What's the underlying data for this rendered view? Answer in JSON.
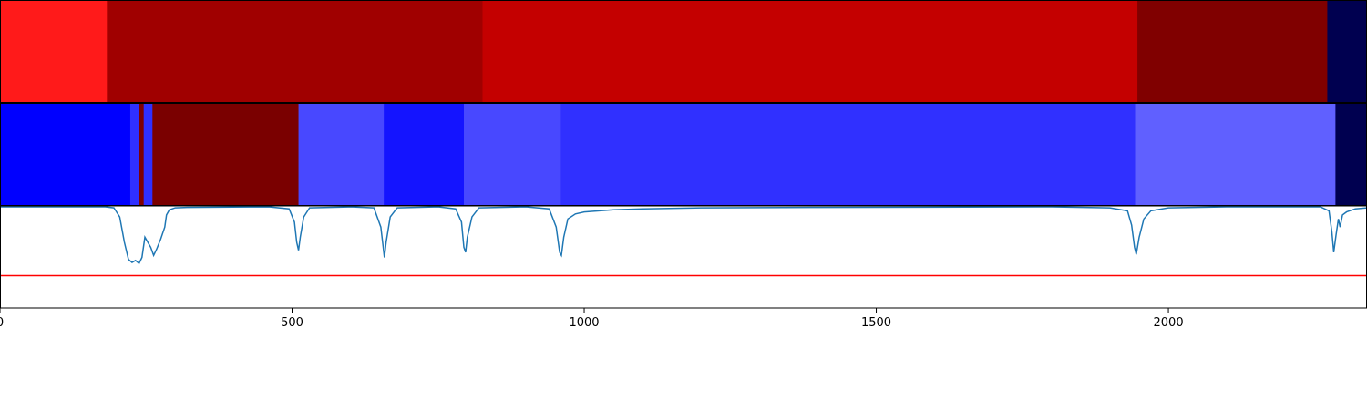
{
  "chart_data": {
    "type": "heatmap",
    "xlim": [
      0,
      2340
    ],
    "xticks": [
      0,
      500,
      1000,
      1500,
      2000
    ],
    "xtick_labels": [
      "0",
      "500",
      "1000",
      "1500",
      "2000"
    ],
    "title": "",
    "xlabel": "",
    "ylabel": "",
    "grid": false,
    "legend": "none",
    "segments_row1": [
      {
        "start": 0,
        "end": 183,
        "color": "#ff1a1a"
      },
      {
        "start": 183,
        "end": 826,
        "color": "#a00000"
      },
      {
        "start": 826,
        "end": 1947,
        "color": "#c40000"
      },
      {
        "start": 1947,
        "end": 2272,
        "color": "#800000"
      },
      {
        "start": 2272,
        "end": 2340,
        "color": "#000050"
      }
    ],
    "segments_row2": [
      {
        "start": 0,
        "end": 223,
        "color": "#0000ff"
      },
      {
        "start": 223,
        "end": 238,
        "color": "#3030ff"
      },
      {
        "start": 238,
        "end": 246,
        "color": "#800000"
      },
      {
        "start": 246,
        "end": 261,
        "color": "#3030ff"
      },
      {
        "start": 261,
        "end": 511,
        "color": "#7a0000"
      },
      {
        "start": 511,
        "end": 657,
        "color": "#4848ff"
      },
      {
        "start": 657,
        "end": 794,
        "color": "#1414ff"
      },
      {
        "start": 794,
        "end": 960,
        "color": "#4848ff"
      },
      {
        "start": 960,
        "end": 1943,
        "color": "#3030ff"
      },
      {
        "start": 1943,
        "end": 2286,
        "color": "#6060ff"
      },
      {
        "start": 2286,
        "end": 2340,
        "color": "#000050"
      }
    ],
    "signal": {
      "color": "#1f77b4",
      "ylim": [
        0,
        1
      ],
      "points": [
        [
          0,
          1.0
        ],
        [
          180,
          1.0
        ],
        [
          195,
          0.99
        ],
        [
          205,
          0.9
        ],
        [
          213,
          0.65
        ],
        [
          220,
          0.48
        ],
        [
          226,
          0.45
        ],
        [
          232,
          0.47
        ],
        [
          238,
          0.44
        ],
        [
          243,
          0.5
        ],
        [
          248,
          0.7
        ],
        [
          253,
          0.65
        ],
        [
          258,
          0.6
        ],
        [
          263,
          0.52
        ],
        [
          268,
          0.58
        ],
        [
          275,
          0.68
        ],
        [
          282,
          0.8
        ],
        [
          285,
          0.92
        ],
        [
          290,
          0.97
        ],
        [
          300,
          0.99
        ],
        [
          320,
          0.995
        ],
        [
          460,
          1.0
        ],
        [
          495,
          0.98
        ],
        [
          504,
          0.85
        ],
        [
          508,
          0.65
        ],
        [
          511,
          0.57
        ],
        [
          514,
          0.7
        ],
        [
          520,
          0.9
        ],
        [
          530,
          0.99
        ],
        [
          600,
          1.0
        ],
        [
          640,
          0.99
        ],
        [
          652,
          0.8
        ],
        [
          656,
          0.6
        ],
        [
          658,
          0.5
        ],
        [
          661,
          0.65
        ],
        [
          668,
          0.9
        ],
        [
          680,
          0.99
        ],
        [
          750,
          1.0
        ],
        [
          780,
          0.98
        ],
        [
          790,
          0.85
        ],
        [
          794,
          0.6
        ],
        [
          797,
          0.55
        ],
        [
          800,
          0.7
        ],
        [
          808,
          0.9
        ],
        [
          820,
          0.99
        ],
        [
          900,
          1.0
        ],
        [
          940,
          0.98
        ],
        [
          952,
          0.8
        ],
        [
          958,
          0.55
        ],
        [
          961,
          0.52
        ],
        [
          965,
          0.7
        ],
        [
          972,
          0.88
        ],
        [
          985,
          0.93
        ],
        [
          1000,
          0.95
        ],
        [
          1050,
          0.97
        ],
        [
          1100,
          0.98
        ],
        [
          1200,
          0.99
        ],
        [
          1400,
          0.995
        ],
        [
          1800,
          1.0
        ],
        [
          1900,
          0.99
        ],
        [
          1930,
          0.96
        ],
        [
          1937,
          0.82
        ],
        [
          1942,
          0.6
        ],
        [
          1945,
          0.53
        ],
        [
          1950,
          0.7
        ],
        [
          1958,
          0.88
        ],
        [
          1970,
          0.96
        ],
        [
          2000,
          0.99
        ],
        [
          2100,
          1.0
        ],
        [
          2260,
          1.0
        ],
        [
          2275,
          0.96
        ],
        [
          2280,
          0.75
        ],
        [
          2283,
          0.55
        ],
        [
          2287,
          0.72
        ],
        [
          2291,
          0.88
        ],
        [
          2294,
          0.8
        ],
        [
          2298,
          0.92
        ],
        [
          2305,
          0.95
        ],
        [
          2320,
          0.98
        ],
        [
          2340,
          0.99
        ]
      ]
    },
    "threshold": {
      "value": 0.32,
      "color": "#ff0000"
    }
  }
}
